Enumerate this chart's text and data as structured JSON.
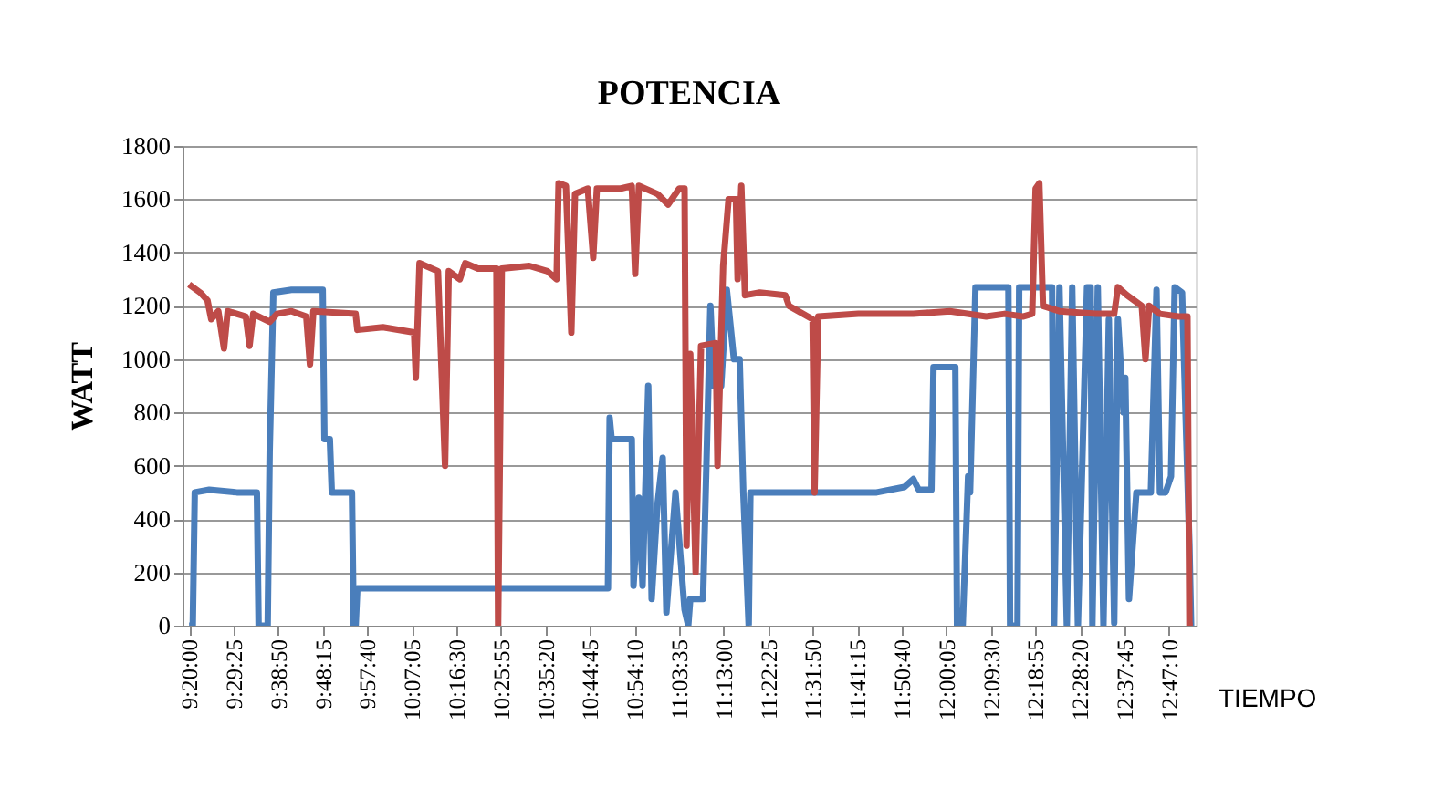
{
  "chart_data": {
    "type": "line",
    "title": "POTENCIA",
    "xlabel": "TIEMPO",
    "ylabel": "WATT",
    "xlim": [
      9.31,
      12.88
    ],
    "xticks": [
      {
        "value": 9.3333,
        "label": "9:20:00"
      },
      {
        "value": 9.4903,
        "label": "9:29:25"
      },
      {
        "value": 9.6472,
        "label": "9:38:50"
      },
      {
        "value": 9.8042,
        "label": "9:48:15"
      },
      {
        "value": 9.9611,
        "label": "9:57:40"
      },
      {
        "value": 10.1181,
        "label": "10:07:05"
      },
      {
        "value": 10.275,
        "label": "10:16:30"
      },
      {
        "value": 10.4319,
        "label": "10:25:55"
      },
      {
        "value": 10.5889,
        "label": "10:35:20"
      },
      {
        "value": 10.7458,
        "label": "10:44:45"
      },
      {
        "value": 10.9028,
        "label": "10:54:10"
      },
      {
        "value": 11.0597,
        "label": "11:03:35"
      },
      {
        "value": 11.2167,
        "label": "11:13:00"
      },
      {
        "value": 11.3736,
        "label": "11:22:25"
      },
      {
        "value": 11.5306,
        "label": "11:31:50"
      },
      {
        "value": 11.6875,
        "label": "11:41:15"
      },
      {
        "value": 11.8444,
        "label": "11:50:40"
      },
      {
        "value": 12.0014,
        "label": "12:00:05"
      },
      {
        "value": 12.1583,
        "label": "12:09:30"
      },
      {
        "value": 12.3153,
        "label": "12:18:55"
      },
      {
        "value": 12.4722,
        "label": "12:28:20"
      },
      {
        "value": 12.6292,
        "label": "12:37:45"
      },
      {
        "value": 12.7861,
        "label": "12:47:10"
      }
    ],
    "ylim": [
      0,
      1800
    ],
    "yticks": [
      0,
      200,
      400,
      600,
      800,
      1000,
      1200,
      1400,
      1600,
      1800
    ],
    "grid": "y",
    "line_style": "solid",
    "series": [
      {
        "color": "#4a7ebb",
        "x": [
          9.333,
          9.346,
          9.353,
          9.404,
          9.501,
          9.572,
          9.578,
          9.61,
          9.617,
          9.63,
          9.694,
          9.804,
          9.81,
          9.829,
          9.836,
          9.887,
          9.907,
          9.913,
          9.92,
          9.926,
          9.952,
          10.145,
          10.338,
          10.467,
          10.596,
          10.725,
          10.809,
          10.815,
          10.822,
          10.893,
          10.899,
          10.918,
          10.931,
          10.951,
          10.963,
          10.983,
          11.002,
          11.015,
          11.047,
          11.079,
          11.092,
          11.099,
          11.144,
          11.17,
          11.182,
          11.208,
          11.228,
          11.253,
          11.273,
          11.286,
          11.305,
          11.311,
          11.434,
          11.563,
          11.691,
          11.756,
          11.853,
          11.885,
          11.904,
          11.949,
          11.956,
          12.014,
          12.033,
          12.039,
          12.059,
          12.078,
          12.085,
          12.104,
          12.207,
          12.22,
          12.226,
          12.252,
          12.258,
          12.374,
          12.381,
          12.4,
          12.426,
          12.445,
          12.465,
          12.497,
          12.51,
          12.516,
          12.535,
          12.555,
          12.574,
          12.593,
          12.606,
          12.626,
          12.632,
          12.645,
          12.671,
          12.722,
          12.742,
          12.754,
          12.774,
          12.793,
          12.806,
          12.832,
          12.858,
          12.864
        ],
        "values": [
          0,
          0,
          500,
          510,
          500,
          500,
          0,
          0,
          650,
          1250,
          1260,
          1260,
          700,
          700,
          500,
          500,
          500,
          0,
          0,
          140,
          140,
          140,
          140,
          140,
          140,
          140,
          140,
          780,
          700,
          700,
          150,
          480,
          150,
          900,
          100,
          450,
          630,
          50,
          500,
          60,
          0,
          100,
          100,
          1200,
          900,
          900,
          1260,
          1000,
          1000,
          500,
          0,
          500,
          500,
          500,
          500,
          500,
          520,
          550,
          510,
          510,
          970,
          970,
          970,
          0,
          0,
          560,
          500,
          1270,
          1270,
          1270,
          0,
          0,
          1270,
          1270,
          0,
          1270,
          0,
          1270,
          0,
          1270,
          1270,
          0,
          1270,
          0,
          1150,
          10,
          1150,
          800,
          930,
          100,
          500,
          500,
          1260,
          500,
          500,
          560,
          1270,
          1250,
          300,
          0
        ]
      },
      {
        "color": "#be4b48",
        "x": [
          9.333,
          9.372,
          9.398,
          9.411,
          9.436,
          9.456,
          9.469,
          9.533,
          9.546,
          9.559,
          9.617,
          9.643,
          9.694,
          9.746,
          9.759,
          9.771,
          9.92,
          9.926,
          10.016,
          10.126,
          10.132,
          10.145,
          10.21,
          10.235,
          10.248,
          10.287,
          10.306,
          10.351,
          10.377,
          10.416,
          10.422,
          10.435,
          10.532,
          10.596,
          10.628,
          10.635,
          10.661,
          10.68,
          10.693,
          10.738,
          10.757,
          10.77,
          10.854,
          10.893,
          10.905,
          10.918,
          10.983,
          11.021,
          11.06,
          11.079,
          11.086,
          11.099,
          11.118,
          11.137,
          11.189,
          11.195,
          11.215,
          11.234,
          11.26,
          11.266,
          11.279,
          11.292,
          11.344,
          11.434,
          11.447,
          11.53,
          11.537,
          11.55,
          11.691,
          11.885,
          12.014,
          12.142,
          12.207,
          12.271,
          12.304,
          12.316,
          12.329,
          12.342,
          12.4,
          12.529,
          12.593,
          12.606,
          12.638,
          12.69,
          12.703,
          12.716,
          12.754,
          12.819,
          12.851,
          12.858,
          12.87
        ],
        "values": [
          1280,
          1250,
          1220,
          1150,
          1180,
          1040,
          1180,
          1160,
          1050,
          1170,
          1140,
          1170,
          1180,
          1160,
          980,
          1180,
          1170,
          1110,
          1120,
          1100,
          930,
          1360,
          1330,
          600,
          1330,
          1300,
          1360,
          1340,
          1340,
          1340,
          0,
          1340,
          1350,
          1330,
          1300,
          1660,
          1650,
          1100,
          1620,
          1640,
          1380,
          1640,
          1640,
          1650,
          1320,
          1650,
          1620,
          1580,
          1640,
          1640,
          300,
          1020,
          200,
          1050,
          1060,
          600,
          1350,
          1600,
          1600,
          1300,
          1650,
          1240,
          1250,
          1240,
          1200,
          1150,
          500,
          1160,
          1170,
          1170,
          1180,
          1160,
          1170,
          1160,
          1170,
          1640,
          1660,
          1200,
          1180,
          1170,
          1170,
          1270,
          1240,
          1200,
          1000,
          1200,
          1170,
          1160,
          1160,
          0,
          0
        ]
      }
    ]
  }
}
